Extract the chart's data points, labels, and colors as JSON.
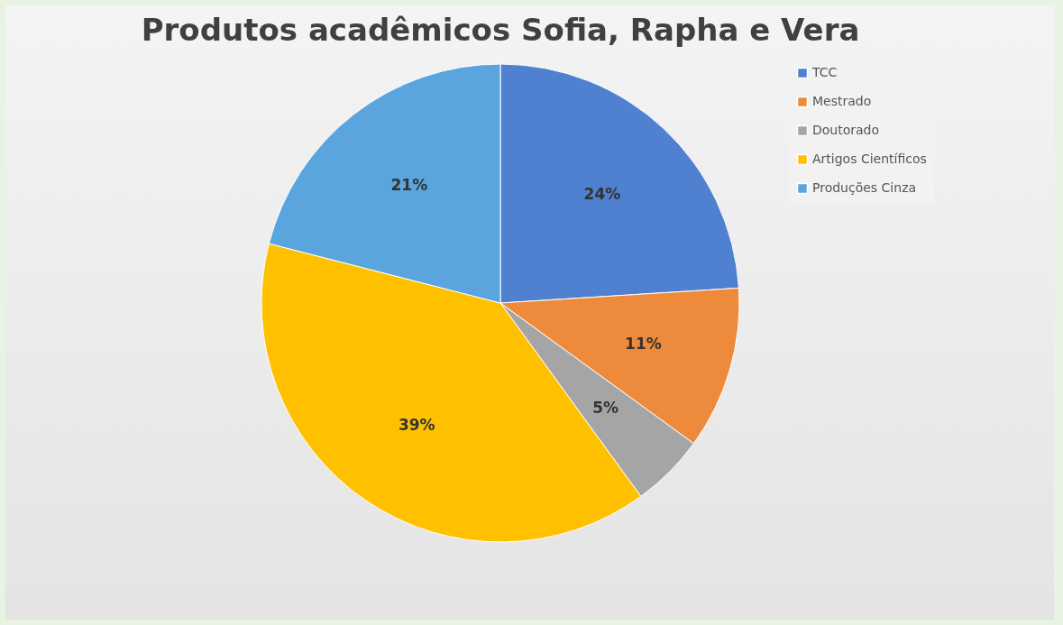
{
  "chart_data": {
    "type": "pie",
    "title": "Produtos acadêmicos Sofia, Rapha e Vera",
    "categories": [
      "TCC",
      "Mestrado",
      "Doutorado",
      "Artigos Científicos",
      "Produções Cinza"
    ],
    "values": [
      24,
      11,
      5,
      39,
      21
    ],
    "value_labels": [
      "24%",
      "11%",
      "5%",
      "39%",
      "21%"
    ],
    "colors": [
      "#4f81d0",
      "#ee8a3b",
      "#a5a5a5",
      "#ffc000",
      "#5aa5de"
    ],
    "legend": "right"
  }
}
